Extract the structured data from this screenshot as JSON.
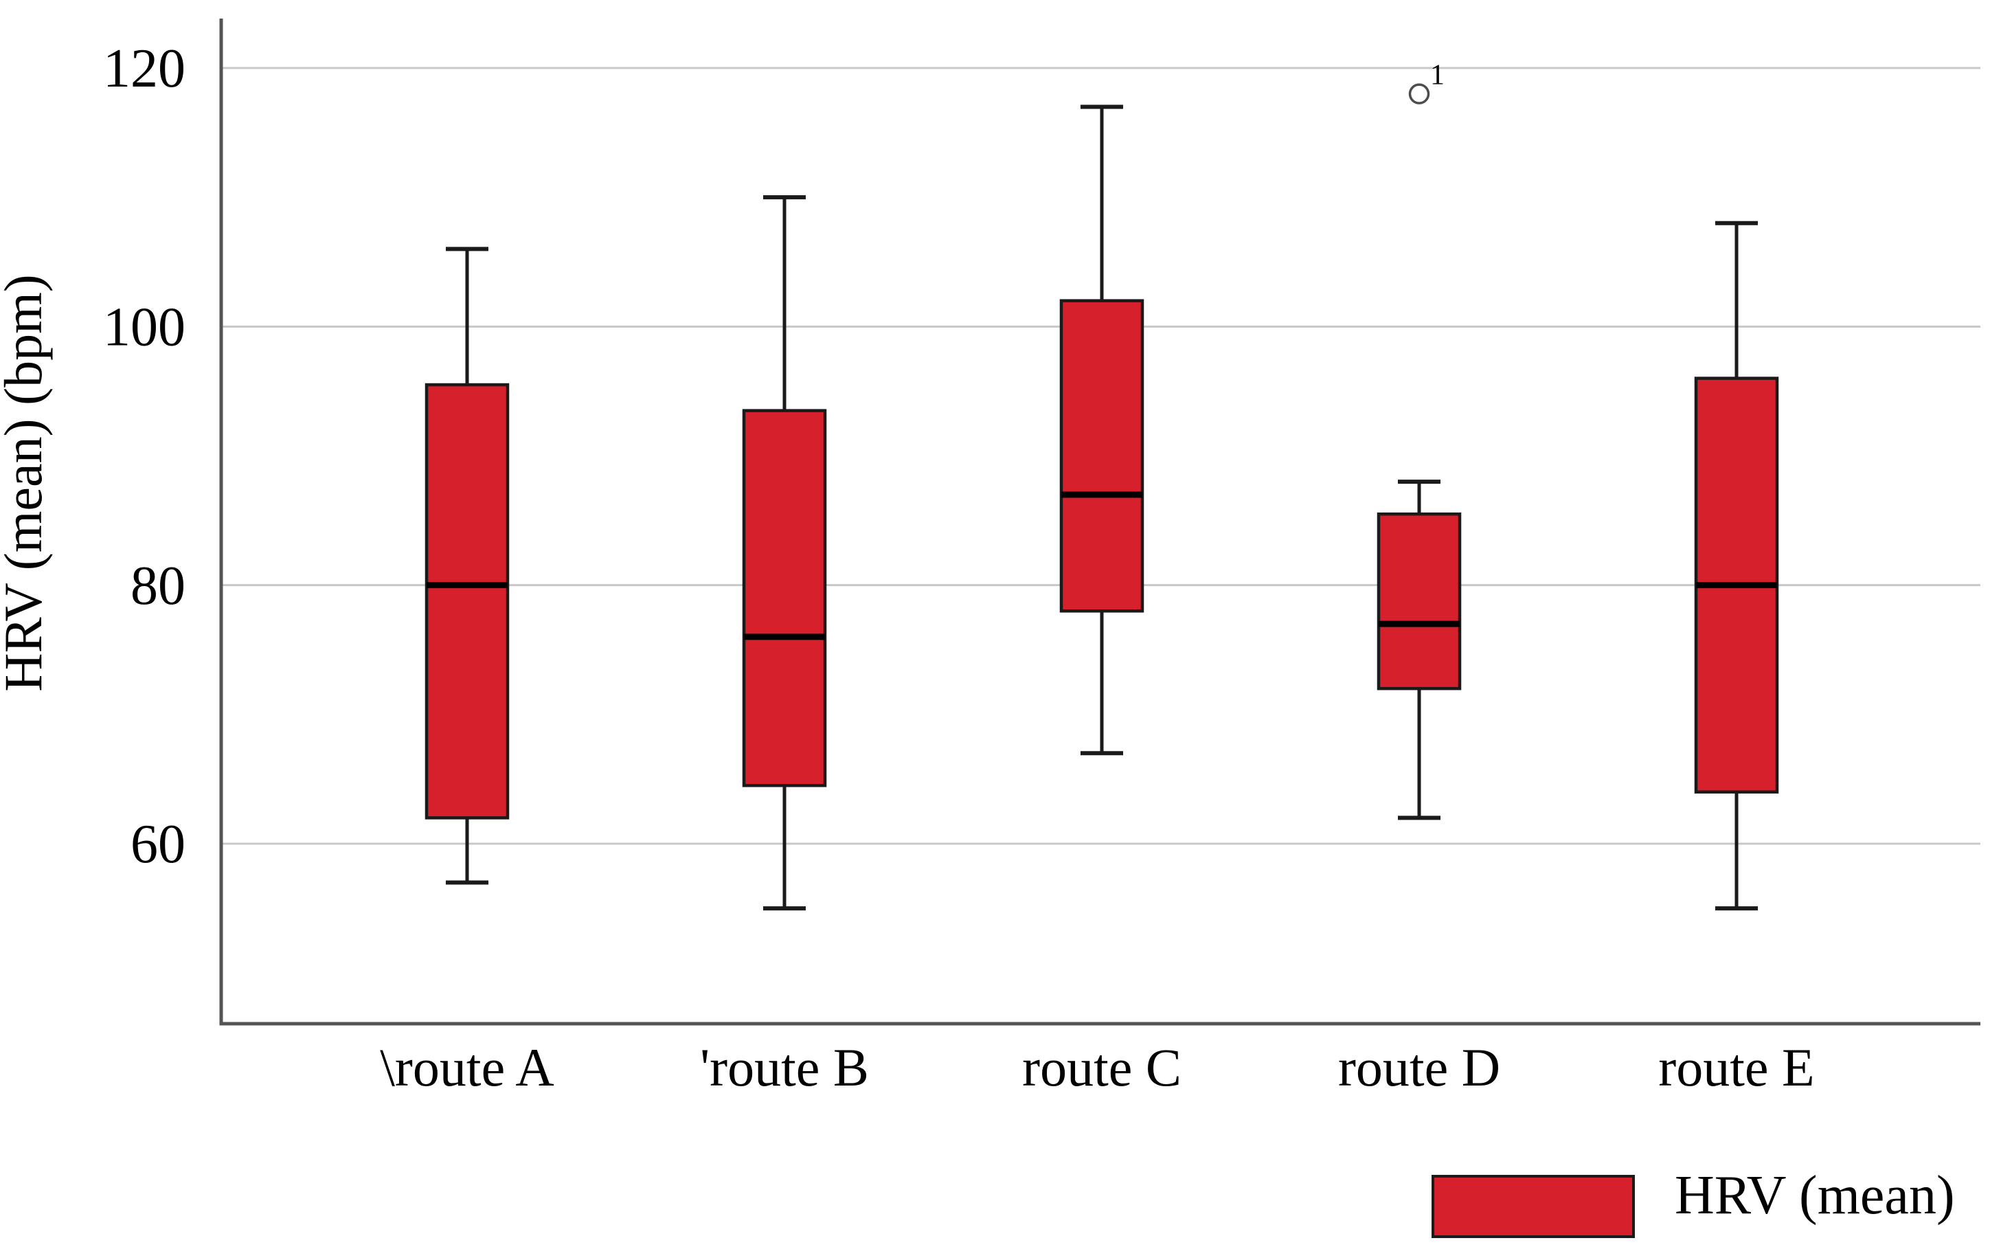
{
  "figure": {
    "background": "#ffffff",
    "y_axis_title": "HRV (mean) (bpm)",
    "x_axis_title": "",
    "legend": {
      "label": "HRV (mean)",
      "position": "bottom-right",
      "swatch_color": "#d6202b"
    }
  },
  "chart_data": {
    "type": "boxplot",
    "title": "",
    "xlabel": "",
    "ylabel": "HRV (mean) (bpm)",
    "ylim": [
      46,
      124
    ],
    "yticks": [
      120,
      100,
      80,
      60
    ],
    "grid": true,
    "legend_position": "bottom-right",
    "legend_label": "HRV (mean)",
    "categories": [
      "route A",
      "route B",
      "route C",
      "route D",
      "route E"
    ],
    "category_prefix_marks": [
      "\\",
      "'",
      "",
      "",
      ""
    ],
    "boxes": [
      {
        "category": "route A",
        "whisker_low": 57,
        "q1": 62,
        "median": 80,
        "q3": 95.5,
        "whisker_high": 106,
        "outliers": []
      },
      {
        "category": "route B",
        "whisker_low": 55,
        "q1": 64.5,
        "median": 76,
        "q3": 93.5,
        "whisker_high": 110,
        "outliers": []
      },
      {
        "category": "route C",
        "whisker_low": 67,
        "q1": 78,
        "median": 87,
        "q3": 102,
        "whisker_high": 117,
        "outliers": []
      },
      {
        "category": "route D",
        "whisker_low": 62,
        "q1": 72,
        "median": 77,
        "q3": 85.5,
        "whisker_high": 88,
        "outliers": [
          {
            "value": 118,
            "label": "1"
          }
        ]
      },
      {
        "category": "route E",
        "whisker_low": 55,
        "q1": 64,
        "median": 80,
        "q3": 96,
        "whisker_high": 108,
        "outliers": []
      }
    ],
    "colors": {
      "box_fill": "#d6202b",
      "box_border": "#1a1a1a",
      "median_line": "#000000",
      "whisker": "#1a1a1a",
      "gridline": "#c8c8c8",
      "axis_line": "#545454",
      "outlier_stroke": "#4d4d4d",
      "text": "#000000"
    }
  }
}
